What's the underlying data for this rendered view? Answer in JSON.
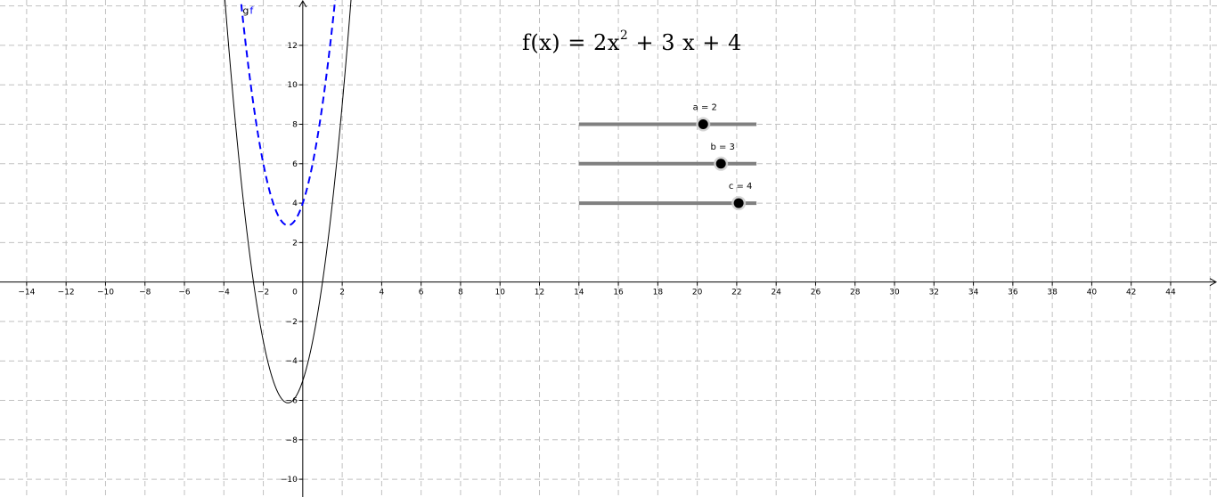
{
  "app": {
    "view": "Graphics"
  },
  "axes": {
    "x_min": -15.35,
    "x_max": 46.35,
    "y_min": -10.9,
    "y_max": 14.3,
    "x_ticks": [
      -14,
      -12,
      -10,
      -8,
      -6,
      -4,
      -2,
      2,
      4,
      6,
      8,
      10,
      12,
      14,
      16,
      18,
      20,
      22,
      24,
      26,
      28,
      30,
      32,
      34,
      36,
      38,
      40,
      42,
      44
    ],
    "y_ticks": [
      -10,
      -8,
      -6,
      -4,
      -2,
      2,
      4,
      6,
      8,
      10,
      12
    ],
    "grid": true,
    "grid_step": 2,
    "origin_label": "0"
  },
  "functions": [
    {
      "id": "f",
      "label": "f",
      "expression": "2x² + 3x + 4",
      "style": "dashed",
      "color": "#0000ff"
    },
    {
      "id": "g",
      "label": "g",
      "expression": "2x² + 3x − 5",
      "style": "solid",
      "color": "#000000"
    }
  ],
  "curve_labels": {
    "g": "g",
    "f": "f"
  },
  "formula": {
    "lhs": "f(x)",
    "eq": "=",
    "coef_a": "2",
    "var_a": "x",
    "power": "2",
    "plus1": "+",
    "coef_b": "3",
    "var_b": "x",
    "plus2": "+",
    "coef_c": "4"
  },
  "sliders": [
    {
      "name": "a",
      "label": "a = 2",
      "value": 2,
      "min": -5,
      "max": 5,
      "fraction": 0.7
    },
    {
      "name": "b",
      "label": "b = 3",
      "value": 3,
      "min": -5,
      "max": 5,
      "fraction": 0.8
    },
    {
      "name": "c",
      "label": "c = 4",
      "value": 4,
      "min": -5,
      "max": 5,
      "fraction": 0.9
    }
  ],
  "colors": {
    "grid": "#c0c0c0",
    "axis": "#000000",
    "curve_f": "#0000ff",
    "curve_g": "#000000",
    "slider_track": "#808080",
    "slider_point": "#000000"
  }
}
